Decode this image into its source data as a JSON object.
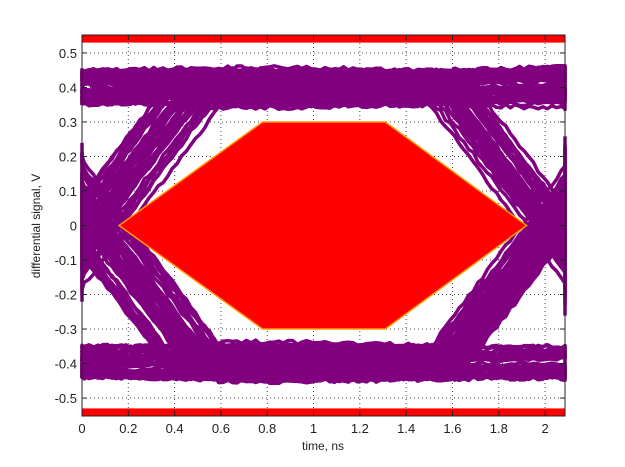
{
  "chart_data": {
    "type": "line",
    "subtype": "eye-diagram",
    "title": "",
    "xlabel": "time, ns",
    "ylabel": "differential signal, V",
    "xlim": [
      0,
      2.086
    ],
    "ylim": [
      -0.552,
      0.552
    ],
    "xticks": [
      0,
      0.2,
      0.4,
      0.6,
      0.8,
      1,
      1.2,
      1.4,
      1.6,
      1.8,
      2
    ],
    "xtick_labels": [
      "0",
      "0.2",
      "0.4",
      "0.6",
      "0.8",
      "1",
      "1.2",
      "1.4",
      "1.6",
      "1.8",
      "2"
    ],
    "yticks": [
      0.5,
      0.4,
      0.3,
      0.2,
      0.1,
      0,
      -0.1,
      -0.2,
      -0.3,
      -0.4,
      -0.5
    ],
    "ytick_labels": [
      "0.5",
      "0.4",
      "0.3",
      "0.2",
      "0.1",
      "0",
      "-0.1",
      "-0.2",
      "-0.3",
      "-0.4",
      "-0.5"
    ],
    "grid": true,
    "grid_style": "dotted",
    "legend": "none",
    "eye_mask": {
      "polygon": [
        [
          0.16,
          0
        ],
        [
          0.78,
          0.3
        ],
        [
          1.31,
          0.3
        ],
        [
          1.92,
          0
        ],
        [
          1.31,
          -0.3
        ],
        [
          0.78,
          -0.3
        ]
      ],
      "upper_band": [
        0.53,
        0.552
      ],
      "lower_band": [
        -0.552,
        -0.53
      ],
      "color": "#ff0000",
      "edge_color": "#ff9900"
    },
    "eye_traces": {
      "high_level": 0.4,
      "low_level": -0.4,
      "level_spread": 0.05,
      "left_crossing_times": [
        -0.05,
        0.05,
        0.15
      ],
      "right_crossing_times": [
        1.98,
        2.03,
        2.08
      ],
      "transition_duration": 0.9,
      "color": "#800080"
    }
  }
}
